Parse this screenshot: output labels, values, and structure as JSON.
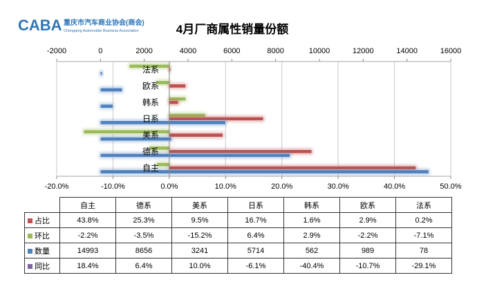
{
  "header": {
    "logo_text": "CABA",
    "org_name": "重庆市汽车商业协会(商会)",
    "org_name_en": "Chongqing Automobile Business Association"
  },
  "chart_data": {
    "type": "bar",
    "title": "4月厂商属性销量份额",
    "categories": [
      "自主",
      "德系",
      "美系",
      "日系",
      "韩系",
      "欧系",
      "法系"
    ],
    "series": [
      {
        "name": "占比",
        "color": "#c0504d",
        "axis": "percent",
        "values": [
          43.8,
          25.3,
          9.5,
          16.7,
          1.6,
          2.9,
          0.2
        ]
      },
      {
        "name": "环比",
        "color": "#9bbb59",
        "axis": "percent",
        "values": [
          -2.2,
          -3.5,
          -15.2,
          6.4,
          2.9,
          -2.2,
          -7.1
        ]
      },
      {
        "name": "数量",
        "color": "#4f81bd",
        "axis": "count",
        "values": [
          14993,
          8656,
          3241,
          5714,
          562,
          989,
          78
        ]
      },
      {
        "name": "同比",
        "color": "#8064a2",
        "axis": "percent",
        "values": [
          18.4,
          6.4,
          10.0,
          -6.1,
          -40.4,
          -10.7,
          -29.1
        ]
      }
    ],
    "x_top_ticks": [
      "-2000",
      "0",
      "2000",
      "4000",
      "6000",
      "8000",
      "10000",
      "12000",
      "14000",
      "16000"
    ],
    "x_top_range": [
      -2000,
      16000
    ],
    "x_bottom_ticks": [
      "-20.0%",
      "-10.0%",
      "0.0%",
      "10.0%",
      "20.0%",
      "30.0%",
      "40.0%",
      "50.0%"
    ],
    "x_bottom_range": [
      -20,
      50
    ],
    "grid": true,
    "legend": "table-below"
  },
  "table": {
    "headers": [
      "自主",
      "德系",
      "美系",
      "日系",
      "韩系",
      "欧系",
      "法系"
    ],
    "rows": [
      {
        "label": "占比",
        "color": "#c0504d",
        "cells": [
          "43.8%",
          "25.3%",
          "9.5%",
          "16.7%",
          "1.6%",
          "2.9%",
          "0.2%"
        ]
      },
      {
        "label": "环比",
        "color": "#9bbb59",
        "cells": [
          "-2.2%",
          "-3.5%",
          "-15.2%",
          "6.4%",
          "2.9%",
          "-2.2%",
          "-7.1%"
        ]
      },
      {
        "label": "数量",
        "color": "#4f81bd",
        "cells": [
          "14993",
          "8656",
          "3241",
          "5714",
          "562",
          "989",
          "78"
        ]
      },
      {
        "label": "同比",
        "color": "#8064a2",
        "cells": [
          "18.4%",
          "6.4%",
          "10.0%",
          "-6.1%",
          "-40.4%",
          "-10.7%",
          "-29.1%"
        ]
      }
    ]
  }
}
